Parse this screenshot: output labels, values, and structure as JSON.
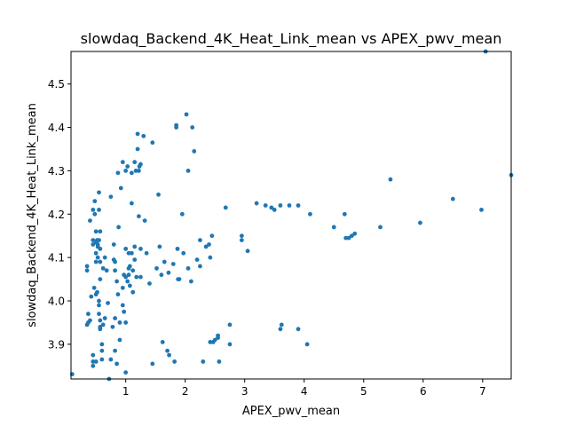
{
  "chart_data": {
    "type": "scatter",
    "title": "slowdaq_Backend_4K_Heat_Link_mean vs APEX_pwv_mean",
    "xlabel": "APEX_pwv_mean",
    "ylabel": "slowdaq_Backend_4K_Heat_Link_mean",
    "xlim": [
      0.08,
      7.48
    ],
    "ylim": [
      3.82,
      4.575
    ],
    "xticks": [
      {
        "value": 1,
        "label": "1"
      },
      {
        "value": 2,
        "label": "2"
      },
      {
        "value": 3,
        "label": "3"
      },
      {
        "value": 4,
        "label": "4"
      },
      {
        "value": 5,
        "label": "5"
      },
      {
        "value": 6,
        "label": "6"
      },
      {
        "value": 7,
        "label": "7"
      }
    ],
    "yticks": [
      {
        "value": 3.9,
        "label": "3.9"
      },
      {
        "value": 4.0,
        "label": "4.0"
      },
      {
        "value": 4.1,
        "label": "4.1"
      },
      {
        "value": 4.2,
        "label": "4.2"
      },
      {
        "value": 4.3,
        "label": "4.3"
      },
      {
        "value": 4.4,
        "label": "4.4"
      },
      {
        "value": 4.5,
        "label": "4.5"
      }
    ],
    "grid": false,
    "marker_color": "#1f77b4",
    "points": [
      [
        0.1,
        3.831
      ],
      [
        0.35,
        4.07
      ],
      [
        0.35,
        4.08
      ],
      [
        0.37,
        3.97
      ],
      [
        0.37,
        3.95
      ],
      [
        0.35,
        3.945
      ],
      [
        0.4,
        3.955
      ],
      [
        0.4,
        4.185
      ],
      [
        0.42,
        4.01
      ],
      [
        0.45,
        4.21
      ],
      [
        0.45,
        4.14
      ],
      [
        0.45,
        4.13
      ],
      [
        0.45,
        3.86
      ],
      [
        0.45,
        3.85
      ],
      [
        0.45,
        3.875
      ],
      [
        0.47,
        4.03
      ],
      [
        0.48,
        4.2
      ],
      [
        0.48,
        4.23
      ],
      [
        0.5,
        4.135
      ],
      [
        0.5,
        4.16
      ],
      [
        0.5,
        4.11
      ],
      [
        0.5,
        4.09
      ],
      [
        0.5,
        4.015
      ],
      [
        0.5,
        3.86
      ],
      [
        0.52,
        4.02
      ],
      [
        0.52,
        4.14
      ],
      [
        0.53,
        4.13
      ],
      [
        0.53,
        4.125
      ],
      [
        0.53,
        4.1
      ],
      [
        0.55,
        4.25
      ],
      [
        0.55,
        4.21
      ],
      [
        0.55,
        4.14
      ],
      [
        0.55,
        4.0
      ],
      [
        0.55,
        3.99
      ],
      [
        0.55,
        3.97
      ],
      [
        0.57,
        4.16
      ],
      [
        0.57,
        4.12
      ],
      [
        0.57,
        4.09
      ],
      [
        0.57,
        4.05
      ],
      [
        0.57,
        3.955
      ],
      [
        0.57,
        3.94
      ],
      [
        0.57,
        3.935
      ],
      [
        0.6,
        3.9
      ],
      [
        0.6,
        3.885
      ],
      [
        0.6,
        3.865
      ],
      [
        0.62,
        4.075
      ],
      [
        0.62,
        3.945
      ],
      [
        0.65,
        4.1
      ],
      [
        0.65,
        3.96
      ],
      [
        0.68,
        4.07
      ],
      [
        0.7,
        3.995
      ],
      [
        0.72,
        3.82
      ],
      [
        0.75,
        4.24
      ],
      [
        0.75,
        3.865
      ],
      [
        0.78,
        3.94
      ],
      [
        0.8,
        4.13
      ],
      [
        0.8,
        4.095
      ],
      [
        0.82,
        4.09
      ],
      [
        0.82,
        4.07
      ],
      [
        0.82,
        3.96
      ],
      [
        0.82,
        3.885
      ],
      [
        0.85,
        4.045
      ],
      [
        0.85,
        3.855
      ],
      [
        0.87,
        4.295
      ],
      [
        0.87,
        4.015
      ],
      [
        0.88,
        4.17
      ],
      [
        0.9,
        3.95
      ],
      [
        0.9,
        3.91
      ],
      [
        0.92,
        4.26
      ],
      [
        0.95,
        4.32
      ],
      [
        0.95,
        4.03
      ],
      [
        0.95,
        3.99
      ],
      [
        0.97,
        4.06
      ],
      [
        0.97,
        3.975
      ],
      [
        1.0,
        4.3
      ],
      [
        1.0,
        4.12
      ],
      [
        1.0,
        4.055
      ],
      [
        1.0,
        3.95
      ],
      [
        1.0,
        3.835
      ],
      [
        1.03,
        4.31
      ],
      [
        1.03,
        4.045
      ],
      [
        1.05,
        4.11
      ],
      [
        1.05,
        4.075
      ],
      [
        1.05,
        4.06
      ],
      [
        1.07,
        4.08
      ],
      [
        1.07,
        4.035
      ],
      [
        1.1,
        4.295
      ],
      [
        1.1,
        4.225
      ],
      [
        1.1,
        4.11
      ],
      [
        1.12,
        4.07
      ],
      [
        1.12,
        4.02
      ],
      [
        1.15,
        4.32
      ],
      [
        1.15,
        4.125
      ],
      [
        1.15,
        4.095
      ],
      [
        1.17,
        4.3
      ],
      [
        1.18,
        4.055
      ],
      [
        1.2,
        4.385
      ],
      [
        1.2,
        4.35
      ],
      [
        1.22,
        4.3
      ],
      [
        1.22,
        4.195
      ],
      [
        1.23,
        4.31
      ],
      [
        1.25,
        4.315
      ],
      [
        1.25,
        4.12
      ],
      [
        1.25,
        4.055
      ],
      [
        1.3,
        4.38
      ],
      [
        1.32,
        4.185
      ],
      [
        1.35,
        4.11
      ],
      [
        1.4,
        4.04
      ],
      [
        1.45,
        4.365
      ],
      [
        1.45,
        3.855
      ],
      [
        1.52,
        4.075
      ],
      [
        1.55,
        4.245
      ],
      [
        1.57,
        4.125
      ],
      [
        1.6,
        4.06
      ],
      [
        1.62,
        3.905
      ],
      [
        1.65,
        4.09
      ],
      [
        1.7,
        3.885
      ],
      [
        1.72,
        4.065
      ],
      [
        1.73,
        3.875
      ],
      [
        1.8,
        4.085
      ],
      [
        1.82,
        3.86
      ],
      [
        1.85,
        4.4
      ],
      [
        1.85,
        4.405
      ],
      [
        1.87,
        4.12
      ],
      [
        1.88,
        4.05
      ],
      [
        1.9,
        4.05
      ],
      [
        1.95,
        4.2
      ],
      [
        1.97,
        4.11
      ],
      [
        2.02,
        4.43
      ],
      [
        2.05,
        4.3
      ],
      [
        2.05,
        4.075
      ],
      [
        2.1,
        4.045
      ],
      [
        2.12,
        4.4
      ],
      [
        2.15,
        4.345
      ],
      [
        2.2,
        4.095
      ],
      [
        2.25,
        4.14
      ],
      [
        2.25,
        4.08
      ],
      [
        2.3,
        3.86
      ],
      [
        2.35,
        4.125
      ],
      [
        2.4,
        4.13
      ],
      [
        2.42,
        4.1
      ],
      [
        2.42,
        3.905
      ],
      [
        2.45,
        4.15
      ],
      [
        2.47,
        3.905
      ],
      [
        2.5,
        3.91
      ],
      [
        2.55,
        3.92
      ],
      [
        2.55,
        3.915
      ],
      [
        2.57,
        3.86
      ],
      [
        2.68,
        4.215
      ],
      [
        2.75,
        3.945
      ],
      [
        2.75,
        3.9
      ],
      [
        2.95,
        4.15
      ],
      [
        2.95,
        4.14
      ],
      [
        3.05,
        4.115
      ],
      [
        3.2,
        4.225
      ],
      [
        3.35,
        4.22
      ],
      [
        3.45,
        4.215
      ],
      [
        3.5,
        4.21
      ],
      [
        3.6,
        4.22
      ],
      [
        3.6,
        3.935
      ],
      [
        3.62,
        3.945
      ],
      [
        3.75,
        4.22
      ],
      [
        3.9,
        4.22
      ],
      [
        3.9,
        3.935
      ],
      [
        4.05,
        3.9
      ],
      [
        4.1,
        4.2
      ],
      [
        4.5,
        4.17
      ],
      [
        4.68,
        4.2
      ],
      [
        4.7,
        4.145
      ],
      [
        4.75,
        4.145
      ],
      [
        4.8,
        4.15
      ],
      [
        4.85,
        4.155
      ],
      [
        5.28,
        4.17
      ],
      [
        5.45,
        4.28
      ],
      [
        5.95,
        4.18
      ],
      [
        6.5,
        4.235
      ],
      [
        6.98,
        4.21
      ],
      [
        7.05,
        4.575
      ],
      [
        7.48,
        4.29
      ]
    ]
  }
}
